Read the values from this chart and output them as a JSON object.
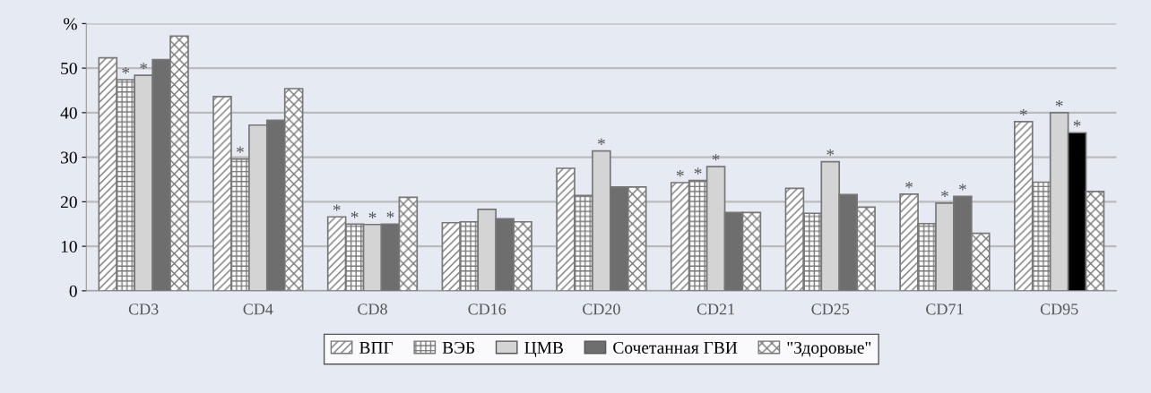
{
  "chart_data": {
    "type": "bar",
    "categories": [
      "CD3",
      "CD4",
      "CD8",
      "CD16",
      "CD20",
      "CD21",
      "CD25",
      "CD71",
      "CD95"
    ],
    "series": [
      {
        "name": "ВПГ",
        "color": "#777777",
        "values": [
          52.3,
          43.6,
          16.6,
          15.3,
          27.5,
          24.3,
          23.0,
          21.7,
          38.0
        ],
        "value_labels": [
          null,
          null,
          "*",
          null,
          null,
          "*",
          null,
          "*",
          "*"
        ]
      },
      {
        "name": "ВЭБ",
        "color": "#777777",
        "values": [
          47.4,
          29.6,
          15.0,
          15.5,
          21.4,
          24.8,
          17.4,
          15.1,
          24.4
        ],
        "value_labels": [
          "*",
          "*",
          "*",
          null,
          null,
          "*",
          null,
          null,
          null
        ]
      },
      {
        "name": "ЦМВ",
        "color": "#d4d4d4",
        "values": [
          48.4,
          37.2,
          14.9,
          18.3,
          31.4,
          27.9,
          29.0,
          19.7,
          40.0
        ],
        "value_labels": [
          "*",
          null,
          "*",
          null,
          "*",
          "*",
          "*",
          "*",
          "*"
        ]
      },
      {
        "name": "Сочетанная ГВИ",
        "color": "#6e6e6e",
        "colors": [
          "#6e6e6e",
          "#6e6e6e",
          "#6e6e6e",
          "#6e6e6e",
          "#6e6e6e",
          "#6e6e6e",
          "#6e6e6e",
          "#6e6e6e",
          "#000000"
        ],
        "values": [
          51.9,
          38.3,
          15.0,
          16.2,
          23.3,
          17.6,
          21.6,
          21.2,
          35.5
        ],
        "value_labels": [
          null,
          null,
          "*",
          null,
          null,
          null,
          null,
          "*",
          "*"
        ]
      },
      {
        "name": "\"Здоровые\"",
        "color": "#777777",
        "values": [
          57.2,
          45.4,
          21.0,
          15.5,
          23.3,
          17.6,
          18.8,
          12.9,
          22.3
        ],
        "value_labels": [
          null,
          null,
          null,
          null,
          null,
          null,
          null,
          null,
          null
        ]
      }
    ],
    "ylim": [
      0,
      60
    ],
    "yticks": [
      0,
      10,
      20,
      30,
      40,
      50,
      {
        "value": 60,
        "label": "%"
      }
    ],
    "grid": "y",
    "legend": "bottom"
  }
}
